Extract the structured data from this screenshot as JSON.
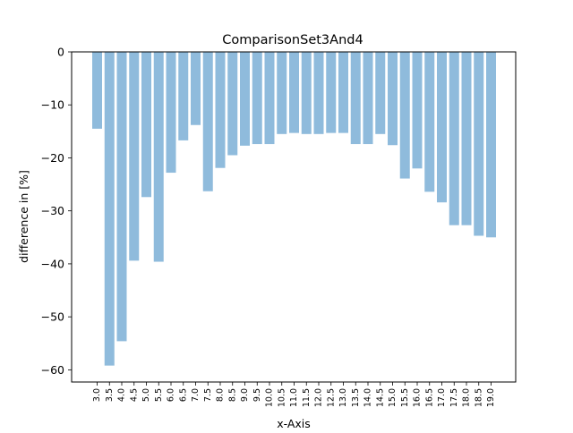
{
  "chart_data": {
    "type": "bar",
    "title": "ComparisonSet3And4",
    "xlabel": "x-Axis",
    "ylabel": "difference in [%]",
    "ylim": [
      -62.3,
      0
    ],
    "yticks": [
      0,
      -10,
      -20,
      -30,
      -40,
      -50,
      -60
    ],
    "ytick_labels": [
      "0",
      "−10",
      "−20",
      "−30",
      "−40",
      "−50",
      "−60"
    ],
    "grid": false,
    "legend": "none",
    "bar_color": "#8fbbdc",
    "categories": [
      "3.0",
      "3.5",
      "4.0",
      "4.5",
      "5.0",
      "5.5",
      "6.0",
      "6.5",
      "7.0",
      "7.5",
      "8.0",
      "8.5",
      "9.0",
      "9.5",
      "10.0",
      "10.5",
      "11.0",
      "11.5",
      "12.0",
      "12.5",
      "13.0",
      "13.5",
      "14.0",
      "14.5",
      "15.0",
      "15.5",
      "16.0",
      "16.5",
      "17.0",
      "17.5",
      "18.0",
      "18.5",
      "19.0"
    ],
    "values": [
      -14.5,
      -59.2,
      -54.6,
      -39.4,
      -27.4,
      -39.6,
      -22.8,
      -16.7,
      -13.8,
      -26.3,
      -21.9,
      -19.5,
      -17.7,
      -17.4,
      -17.4,
      -15.5,
      -15.3,
      -15.5,
      -15.5,
      -15.3,
      -15.3,
      -17.4,
      -17.4,
      -15.5,
      -17.6,
      -23.9,
      -22.0,
      -26.4,
      -28.4,
      -32.7,
      -32.7,
      -34.7,
      -35.0
    ]
  }
}
